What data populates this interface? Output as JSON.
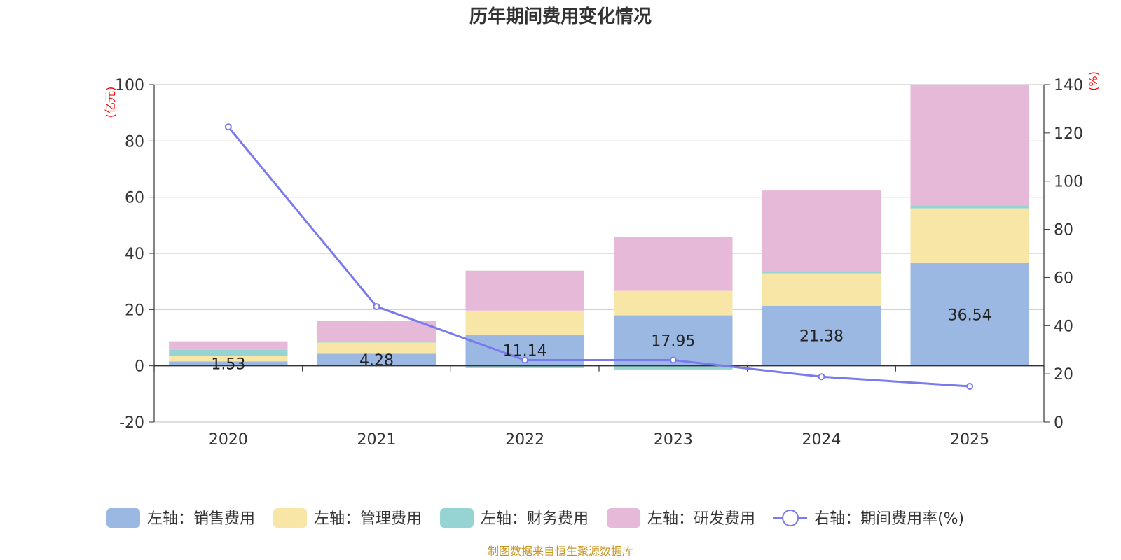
{
  "chart_data": {
    "type": "bar",
    "title": "历年期间费用变化情况",
    "categories": [
      "2020",
      "2021",
      "2022",
      "2023",
      "2024",
      "2025"
    ],
    "left_axis": {
      "unit": "(亿元)",
      "ylim": [
        -20,
        100
      ],
      "ticks": [
        "-20",
        "0",
        "20",
        "40",
        "60",
        "80",
        "100"
      ]
    },
    "right_axis": {
      "unit": "(%)",
      "ylim": [
        0,
        140
      ],
      "ticks": [
        "0",
        "20",
        "40",
        "60",
        "80",
        "100",
        "120",
        "140"
      ]
    },
    "series": [
      {
        "name": "左轴：销售费用",
        "type": "bar",
        "stack": true,
        "axis": "left",
        "color": "#9bb8e2",
        "values": [
          1.53,
          4.28,
          11.14,
          17.95,
          21.38,
          36.54
        ],
        "labels": [
          "1.53",
          "4.28",
          "11.14",
          "17.95",
          "21.38",
          "36.54"
        ]
      },
      {
        "name": "左轴：管理费用",
        "type": "bar",
        "stack": true,
        "axis": "left",
        "color": "#f7e6a6",
        "values": [
          2.0,
          4.0,
          8.5,
          8.7,
          11.5,
          19.5
        ]
      },
      {
        "name": "左轴：财务费用",
        "type": "bar",
        "stack": true,
        "axis": "left",
        "color": "#96d4d4",
        "values": [
          2.2,
          0.2,
          -0.8,
          -1.3,
          0.5,
          1.0
        ]
      },
      {
        "name": "左轴：研发费用",
        "type": "bar",
        "stack": true,
        "axis": "left",
        "color": "#e6b9d8",
        "values": [
          3.0,
          7.4,
          14.2,
          19.2,
          29.0,
          43.0
        ]
      },
      {
        "name": "右轴：期间费用率(%)",
        "type": "line",
        "axis": "right",
        "color": "#7a7aee",
        "values": [
          122.5,
          47.9,
          25.7,
          25.7,
          18.8,
          14.8
        ]
      }
    ]
  },
  "source": "制图数据来自恒生聚源数据库"
}
